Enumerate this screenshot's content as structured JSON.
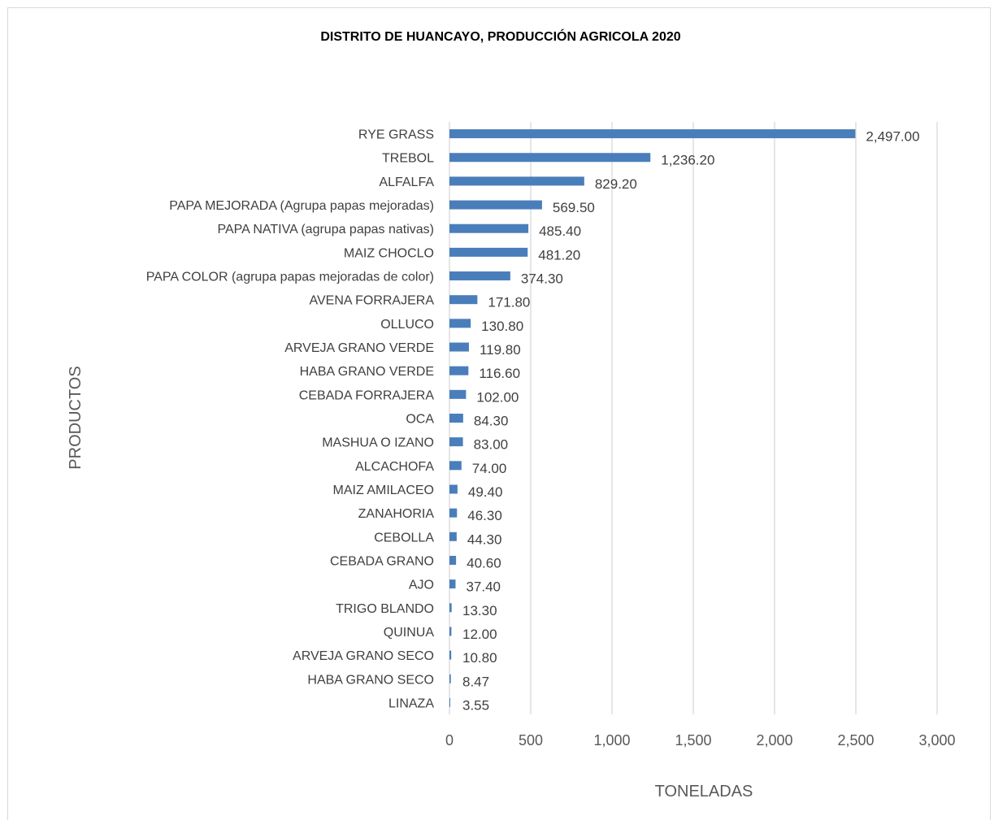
{
  "chart_data": {
    "type": "bar",
    "orientation": "horizontal",
    "title": "DISTRITO DE HUANCAYO,  PRODUCCIÓN AGRICOLA 2020",
    "xlabel": "TONELADAS",
    "ylabel": "PRODUCTOS",
    "xlim": [
      0,
      3000
    ],
    "xticks": [
      0,
      500,
      1000,
      1500,
      2000,
      2500,
      3000
    ],
    "xtick_labels": [
      "0",
      "500",
      "1,000",
      "1,500",
      "2,000",
      "2,500",
      "3,000"
    ],
    "grid": "vertical",
    "legend": "none",
    "bar_color": "#4a7ebb",
    "categories": [
      "RYE GRASS",
      "TREBOL",
      "ALFALFA",
      "PAPA MEJORADA (Agrupa papas mejoradas)",
      "PAPA NATIVA (agrupa papas nativas)",
      "MAIZ CHOCLO",
      "PAPA COLOR (agrupa papas mejoradas de color)",
      "AVENA FORRAJERA",
      "OLLUCO",
      "ARVEJA GRANO VERDE",
      "HABA GRANO VERDE",
      "CEBADA  FORRAJERA",
      "OCA",
      "MASHUA O IZANO",
      "ALCACHOFA",
      "MAIZ AMILACEO",
      "ZANAHORIA",
      "CEBOLLA",
      "CEBADA GRANO",
      "AJO",
      "TRIGO BLANDO",
      "QUINUA",
      "ARVEJA GRANO SECO",
      "HABA GRANO SECO",
      "LINAZA"
    ],
    "values": [
      2497.0,
      1236.2,
      829.2,
      569.5,
      485.4,
      481.2,
      374.3,
      171.8,
      130.8,
      119.8,
      116.6,
      102.0,
      84.3,
      83.0,
      74.0,
      49.4,
      46.3,
      44.3,
      40.6,
      37.4,
      13.3,
      12.0,
      10.8,
      8.47,
      3.55
    ],
    "value_labels": [
      "2,497.00",
      "1,236.20",
      "829.20",
      "569.50",
      "485.40",
      "481.20",
      "374.30",
      "171.80",
      "130.80",
      "119.80",
      "116.60",
      "102.00",
      "84.30",
      "83.00",
      "74.00",
      "49.40",
      "46.30",
      "44.30",
      "40.60",
      "37.40",
      "13.30",
      "12.00",
      "10.80",
      "8.47",
      "3.55"
    ]
  }
}
